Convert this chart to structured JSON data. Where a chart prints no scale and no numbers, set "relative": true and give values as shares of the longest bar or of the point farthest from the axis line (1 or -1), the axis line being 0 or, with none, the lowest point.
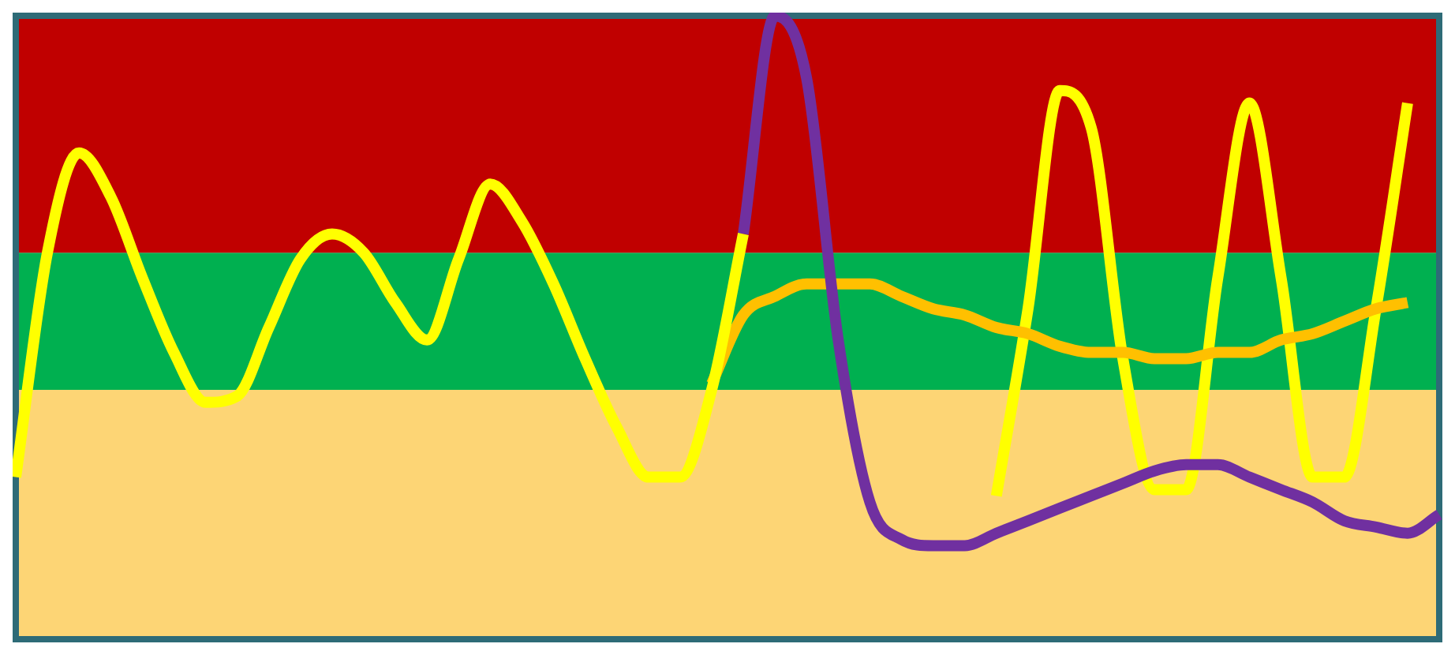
{
  "chart_data": {
    "type": "line",
    "relative": true,
    "legend": false,
    "categories": [
      null,
      null,
      null,
      null,
      null,
      null,
      null,
      null,
      null,
      null,
      null,
      null,
      null,
      null,
      null,
      null,
      null,
      null,
      null,
      null,
      null,
      null,
      null,
      null,
      null,
      null,
      null,
      null,
      null,
      null,
      null,
      null,
      null,
      null,
      null,
      null,
      null,
      null,
      null,
      null,
      null,
      null,
      null,
      null,
      null,
      null
    ],
    "series": [
      {
        "color": "#ffff00",
        "values": [
          0.26,
          0.62,
          0.78,
          0.71,
          0.58,
          0.46,
          0.38,
          0.39,
          0.5,
          0.61,
          0.65,
          0.62,
          0.54,
          0.48,
          0.61,
          0.73,
          0.67,
          0.57,
          0.45,
          0.34,
          0.26,
          0.26,
          0.4,
          0.65,
          null,
          null,
          null,
          null,
          null,
          null,
          null,
          null,
          null,
          null,
          null,
          null,
          null,
          null,
          null,
          null,
          null,
          null,
          null,
          null,
          null,
          null
        ]
      },
      {
        "color": "#7030a0",
        "values": [
          null,
          null,
          null,
          null,
          null,
          null,
          null,
          null,
          null,
          null,
          null,
          null,
          null,
          null,
          null,
          null,
          null,
          null,
          null,
          null,
          null,
          null,
          null,
          0.65,
          1.0,
          0.9,
          0.48,
          0.22,
          0.16,
          0.15,
          0.15,
          0.17,
          0.19,
          0.21,
          0.23,
          0.25,
          0.27,
          0.28,
          0.28,
          0.26,
          0.24,
          0.22,
          0.19,
          0.18,
          0.17,
          0.2
        ]
      },
      {
        "color": "#ffc000",
        "values": [
          null,
          null,
          null,
          null,
          null,
          null,
          null,
          null,
          null,
          null,
          null,
          null,
          null,
          null,
          null,
          null,
          null,
          null,
          null,
          null,
          null,
          null,
          0.41,
          0.52,
          0.55,
          0.57,
          0.57,
          0.57,
          0.55,
          0.53,
          0.52,
          0.5,
          0.49,
          0.47,
          0.46,
          0.46,
          0.45,
          0.45,
          0.46,
          0.46,
          0.48,
          0.49,
          0.51,
          0.53,
          0.54,
          null
        ]
      },
      {
        "color": "#ffff00",
        "values": [
          null,
          null,
          null,
          null,
          null,
          null,
          null,
          null,
          null,
          null,
          null,
          null,
          null,
          null,
          null,
          null,
          null,
          null,
          null,
          null,
          null,
          null,
          null,
          null,
          null,
          null,
          null,
          null,
          null,
          null,
          null,
          0.23,
          0.53,
          0.88,
          0.82,
          0.45,
          0.24,
          0.24,
          0.58,
          0.86,
          0.58,
          0.26,
          0.26,
          0.53,
          0.86,
          null
        ]
      }
    ],
    "bands": [
      {
        "axis": "y",
        "from": 0,
        "to": 0.4,
        "color": "#fdd575"
      },
      {
        "axis": "y",
        "from": 0.4,
        "to": 0.62,
        "color": "#00b050"
      },
      {
        "axis": "y",
        "from": 0.62,
        "to": 1.0,
        "color": "#c00000"
      }
    ]
  }
}
